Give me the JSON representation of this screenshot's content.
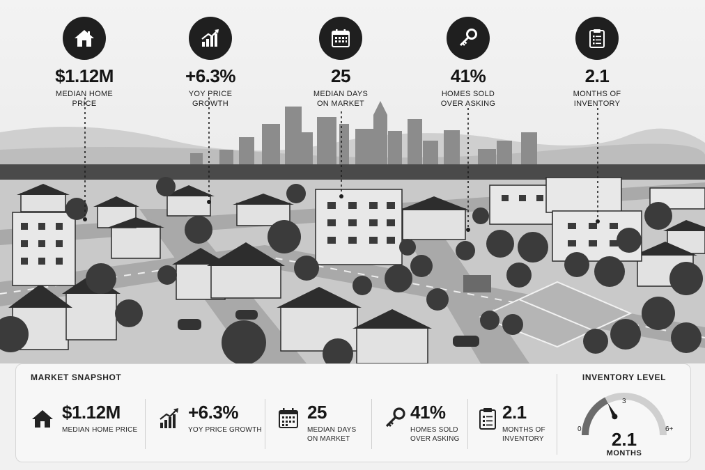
{
  "stats": [
    {
      "icon": "house-icon",
      "value": "$1.12M",
      "label": "MEDIAN HOME PRICE"
    },
    {
      "icon": "growth-chart-icon",
      "value": "+6.3%",
      "label": "YOY PRICE GROWTH"
    },
    {
      "icon": "calendar-icon",
      "value": "25",
      "label": "MEDIAN DAYS\nON MARKET"
    },
    {
      "icon": "key-icon",
      "value": "41%",
      "label": "HOMES SOLD\nOVER ASKING"
    },
    {
      "icon": "clipboard-icon",
      "value": "2.1",
      "label": "MONTHS OF\nINVENTORY"
    }
  ],
  "snapshot": {
    "title": "MARKET SNAPSHOT",
    "items": [
      {
        "icon": "house-icon",
        "value": "$1.12M",
        "label": "MEDIAN HOME PRICE"
      },
      {
        "icon": "growth-chart-icon",
        "value": "+6.3%",
        "label": "YOY PRICE GROWTH"
      },
      {
        "icon": "calendar-icon",
        "value": "25",
        "label": "MEDIAN DAYS\nON MARKET"
      },
      {
        "icon": "key-icon",
        "value": "41%",
        "label": "HOMES SOLD\nOVER ASKING"
      },
      {
        "icon": "clipboard-icon",
        "value": "2.1",
        "label": "MONTHS OF\nINVENTORY"
      }
    ]
  },
  "gauge": {
    "title": "INVENTORY LEVEL",
    "min_label": "0",
    "mid_label": "3",
    "max_label": "6+",
    "min": 0,
    "max": 6,
    "value": 2.1,
    "value_label": "2.1",
    "unit": "MONTHS"
  },
  "colors": {
    "icon_badge": "#1f1f1f",
    "panel_bg": "#f7f7f7",
    "gauge_fill": "#6b6b6b",
    "gauge_track": "#cfcfcf"
  }
}
